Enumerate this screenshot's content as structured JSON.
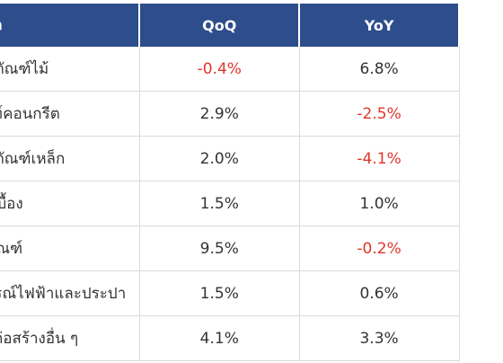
{
  "header": {
    "category": "หมวด",
    "qoq": "QoQ",
    "yoy": "YoY"
  },
  "rows": [
    {
      "category": "ผลิตภัณฑ์ไม้",
      "qoq": "-0.4%",
      "yoy": "6.8%"
    },
    {
      "category": "ภัณฑ์คอนกรีต",
      "qoq": "2.9%",
      "yoy": "-2.5%"
    },
    {
      "category": "ผลิตภัณฑ์เหล็ก",
      "qoq": "2.0%",
      "yoy": "-4.1%"
    },
    {
      "category": "กระเบื้อง",
      "qoq": "1.5%",
      "yoy": "1.0%"
    },
    {
      "category": "สุขภัณฑ์",
      "qoq": "9.5%",
      "yoy": "-0.2%"
    },
    {
      "category": "อุปกรณ์ไฟฟ้าและประปา",
      "qoq": "1.5%",
      "yoy": "0.6%"
    },
    {
      "category": "วัสดุก่อสร้างอื่น ๆ",
      "qoq": "4.1%",
      "yoy": "3.3%"
    }
  ],
  "colors": {
    "header_bg": "#2e4d8c",
    "negative": "#e0352b",
    "text": "#333333"
  }
}
